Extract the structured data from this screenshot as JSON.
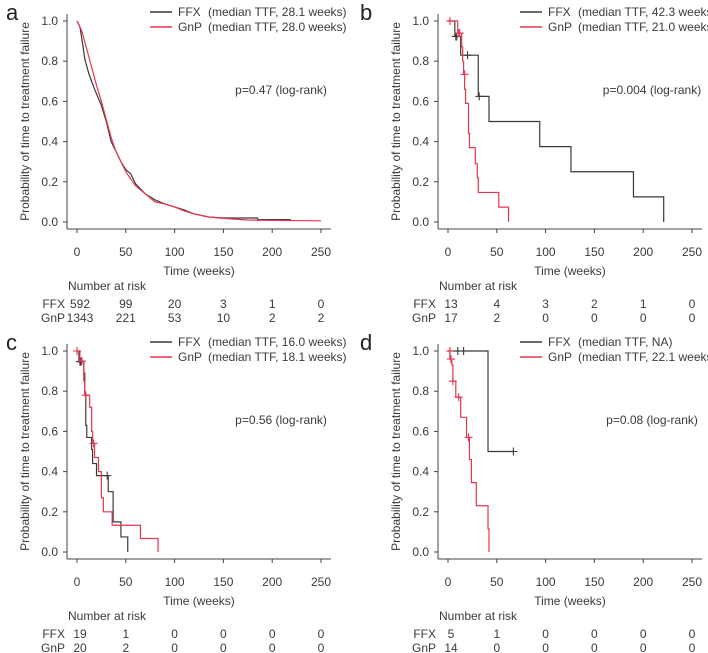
{
  "colors": {
    "FFX": "#3a3a3a",
    "GnP": "#e8364f",
    "axis": "#444444"
  },
  "chart_data": [
    {
      "panel": "a",
      "type": "line",
      "style": "smooth",
      "xlabel": "Time (weeks)",
      "ylabel": "Probability of time to treatment failure",
      "xlim": [
        0,
        250
      ],
      "ylim": [
        0,
        1
      ],
      "xticks": [
        "0",
        "50",
        "100",
        "150",
        "200",
        "250"
      ],
      "yticks": [
        "0.0",
        "0.2",
        "0.4",
        "0.6",
        "0.8",
        "1.0"
      ],
      "pvalue": "p=0.47 (log-rank)",
      "risk_title": "Number at risk",
      "series": [
        {
          "name": "FFX",
          "legend": "(median TTF, 28.1 weeks)",
          "risk": [
            "592",
            "99",
            "20",
            "3",
            "1",
            "0"
          ],
          "points": [
            [
              0,
              1
            ],
            [
              3,
              0.97
            ],
            [
              6,
              0.88
            ],
            [
              8,
              0.81
            ],
            [
              12,
              0.74
            ],
            [
              18,
              0.66
            ],
            [
              25,
              0.58
            ],
            [
              30,
              0.5
            ],
            [
              35,
              0.4
            ],
            [
              40,
              0.35
            ],
            [
              45,
              0.3
            ],
            [
              50,
              0.26
            ],
            [
              55,
              0.24
            ],
            [
              60,
              0.19
            ],
            [
              70,
              0.14
            ],
            [
              80,
              0.11
            ],
            [
              90,
              0.09
            ],
            [
              100,
              0.075
            ],
            [
              110,
              0.06
            ],
            [
              120,
              0.04
            ],
            [
              135,
              0.025
            ],
            [
              150,
              0.02
            ],
            [
              185,
              0.02
            ],
            [
              185,
              0.012
            ],
            [
              219,
              0.012
            ]
          ],
          "censored": []
        },
        {
          "name": "GnP",
          "legend": "(median TTF, 28.0 weeks)",
          "risk": [
            "1343",
            "221",
            "53",
            "10",
            "2",
            "2"
          ],
          "points": [
            [
              0,
              1
            ],
            [
              5,
              0.95
            ],
            [
              10,
              0.86
            ],
            [
              15,
              0.77
            ],
            [
              20,
              0.68
            ],
            [
              25,
              0.6
            ],
            [
              30,
              0.51
            ],
            [
              35,
              0.42
            ],
            [
              40,
              0.35
            ],
            [
              50,
              0.25
            ],
            [
              60,
              0.18
            ],
            [
              70,
              0.14
            ],
            [
              80,
              0.1
            ],
            [
              90,
              0.09
            ],
            [
              100,
              0.075
            ],
            [
              110,
              0.055
            ],
            [
              120,
              0.04
            ],
            [
              135,
              0.025
            ],
            [
              150,
              0.018
            ],
            [
              175,
              0.01
            ],
            [
              200,
              0.008
            ],
            [
              250,
              0.006
            ]
          ],
          "censored": []
        }
      ]
    },
    {
      "panel": "b",
      "type": "line",
      "style": "step",
      "xlabel": "Time (weeks)",
      "ylabel": "Probability of time to treatment failure",
      "xlim": [
        0,
        250
      ],
      "ylim": [
        0,
        1
      ],
      "xticks": [
        "0",
        "50",
        "100",
        "150",
        "200",
        "250"
      ],
      "yticks": [
        "0.0",
        "0.2",
        "0.4",
        "0.6",
        "0.8",
        "1.0"
      ],
      "pvalue": "p=0.004 (log-rank)",
      "risk_title": "Number at risk",
      "series": [
        {
          "name": "FFX",
          "legend": "(median TTF, 42.3 weeks)",
          "risk": [
            "13",
            "4",
            "3",
            "2",
            "1",
            "0"
          ],
          "points": [
            [
              0,
              1
            ],
            [
              7,
              0.923
            ],
            [
              13,
              0.83
            ],
            [
              31,
              0.625
            ],
            [
              42,
              0.5
            ],
            [
              94,
              0.375
            ],
            [
              126,
              0.25
            ],
            [
              190,
              0.125
            ],
            [
              221,
              0
            ]
          ],
          "censored": [
            [
              8,
              0.923
            ],
            [
              9,
              0.923
            ],
            [
              20,
              0.83
            ],
            [
              32,
              0.625
            ]
          ]
        },
        {
          "name": "GnP",
          "legend": "(median TTF, 21.0 weeks)",
          "risk": [
            "17",
            "2",
            "0",
            "0",
            "0",
            "0"
          ],
          "points": [
            [
              0,
              1
            ],
            [
              10,
              0.94
            ],
            [
              14,
              0.87
            ],
            [
              15,
              0.8
            ],
            [
              16,
              0.735
            ],
            [
              17,
              0.66
            ],
            [
              18,
              0.59
            ],
            [
              21,
              0.44
            ],
            [
              22,
              0.37
            ],
            [
              28,
              0.29
            ],
            [
              30,
              0.22
            ],
            [
              31,
              0.147
            ],
            [
              52,
              0.074
            ],
            [
              62,
              0
            ]
          ],
          "censored": [
            [
              2,
              1
            ],
            [
              11,
              0.94
            ],
            [
              12,
              0.94
            ],
            [
              17,
              0.735
            ]
          ]
        }
      ]
    },
    {
      "panel": "c",
      "type": "line",
      "style": "step",
      "xlabel": "Time (weeks)",
      "ylabel": "Probability of time to treatment failure",
      "xlim": [
        0,
        250
      ],
      "ylim": [
        0,
        1
      ],
      "xticks": [
        "0",
        "50",
        "100",
        "150",
        "200",
        "250"
      ],
      "yticks": [
        "0.0",
        "0.2",
        "0.4",
        "0.6",
        "0.8",
        "1.0"
      ],
      "pvalue": "p=0.56 (log-rank)",
      "risk_title": "Number at risk",
      "series": [
        {
          "name": "FFX",
          "legend": "(median TTF, 16.0 weeks)",
          "risk": [
            "19",
            "1",
            "0",
            "0",
            "0",
            "0"
          ],
          "points": [
            [
              0,
              1
            ],
            [
              2,
              0.947
            ],
            [
              7,
              0.89
            ],
            [
              8,
              0.79
            ],
            [
              9,
              0.63
            ],
            [
              10,
              0.57
            ],
            [
              15,
              0.51
            ],
            [
              16,
              0.44
            ],
            [
              20,
              0.38
            ],
            [
              32,
              0.3
            ],
            [
              37,
              0.15
            ],
            [
              45,
              0.075
            ],
            [
              52,
              0
            ]
          ],
          "censored": [
            [
              3,
              0.947
            ],
            [
              4,
              0.947
            ],
            [
              31,
              0.38
            ]
          ]
        },
        {
          "name": "GnP",
          "legend": "(median TTF, 18.1 weeks)",
          "risk": [
            "20",
            "2",
            "0",
            "0",
            "0",
            "0"
          ],
          "points": [
            [
              0,
              1
            ],
            [
              3,
              0.95
            ],
            [
              7,
              0.85
            ],
            [
              8,
              0.78
            ],
            [
              13,
              0.72
            ],
            [
              15,
              0.6
            ],
            [
              16,
              0.54
            ],
            [
              18,
              0.47
            ],
            [
              22,
              0.4
            ],
            [
              25,
              0.27
            ],
            [
              27,
              0.2
            ],
            [
              36,
              0.133
            ],
            [
              65,
              0.067
            ],
            [
              83,
              0
            ]
          ],
          "censored": [
            [
              0,
              1
            ],
            [
              5,
              0.95
            ],
            [
              9,
              0.78
            ],
            [
              17,
              0.54
            ]
          ]
        }
      ]
    },
    {
      "panel": "d",
      "type": "line",
      "style": "step",
      "xlabel": "Time (weeks)",
      "ylabel": "Probability of time to treatment failure",
      "xlim": [
        0,
        250
      ],
      "ylim": [
        0,
        1
      ],
      "xticks": [
        "0",
        "50",
        "100",
        "150",
        "200",
        "250"
      ],
      "yticks": [
        "0.0",
        "0.2",
        "0.4",
        "0.6",
        "0.8",
        "1.0"
      ],
      "pvalue": "p=0.08 (log-rank)",
      "risk_title": "Number at risk",
      "series": [
        {
          "name": "FFX",
          "legend": "(median TTF, NA)",
          "risk": [
            "5",
            "1",
            "0",
            "0",
            "0",
            "0"
          ],
          "points": [
            [
              0,
              1
            ],
            [
              41,
              0.5
            ],
            [
              67,
              0.5
            ]
          ],
          "censored": [
            [
              2,
              1
            ],
            [
              10,
              1
            ],
            [
              16,
              1
            ],
            [
              67,
              0.5
            ]
          ]
        },
        {
          "name": "GnP",
          "legend": "(median TTF, 22.1 weeks)",
          "risk": [
            "14",
            "0",
            "0",
            "0",
            "0",
            "0"
          ],
          "points": [
            [
              0,
              1
            ],
            [
              2,
              0.96
            ],
            [
              4,
              0.93
            ],
            [
              5,
              0.85
            ],
            [
              8,
              0.77
            ],
            [
              13,
              0.67
            ],
            [
              19,
              0.57
            ],
            [
              22,
              0.46
            ],
            [
              24,
              0.345
            ],
            [
              29,
              0.23
            ],
            [
              41,
              0.115
            ],
            [
              42,
              0
            ]
          ],
          "censored": [
            [
              2,
              1
            ],
            [
              3,
              0.96
            ],
            [
              5,
              0.85
            ],
            [
              11,
              0.77
            ],
            [
              21,
              0.57
            ]
          ]
        }
      ]
    }
  ]
}
